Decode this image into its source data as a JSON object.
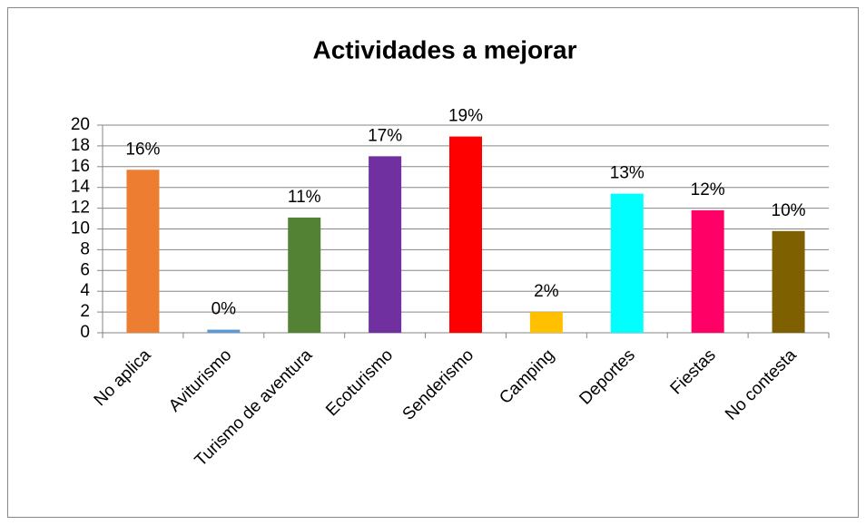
{
  "chart_data": {
    "type": "bar",
    "title": "Actividades a mejorar",
    "categories": [
      "No aplica",
      "Aviturismo",
      "Turismo de aventura",
      "Ecoturismo",
      "Senderismo",
      "Camping",
      "Deportes",
      "Fiestas",
      "No contesta"
    ],
    "values": [
      15.7,
      0.3,
      11.1,
      17.0,
      18.9,
      2.0,
      13.4,
      11.8,
      9.8
    ],
    "value_labels": [
      "16%",
      "0%",
      "11%",
      "17%",
      "19%",
      "2%",
      "13%",
      "12%",
      "10%"
    ],
    "colors": [
      "#ed7d31",
      "#5b9bd5",
      "#548235",
      "#7030a0",
      "#ff0000",
      "#ffc000",
      "#00ffff",
      "#ff0066",
      "#7f6000"
    ],
    "ylim": [
      0,
      20
    ],
    "yticks": [
      0,
      2,
      4,
      6,
      8,
      10,
      12,
      14,
      16,
      18,
      20
    ],
    "grid": true
  }
}
